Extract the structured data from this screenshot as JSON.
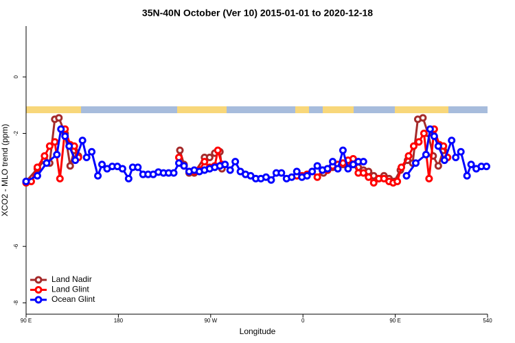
{
  "chart_data": {
    "type": "line",
    "title": "35N-40N October (Ver 10)   2015-01-01 to 2020-12-18",
    "x_label": "Longitude",
    "y_label": "XCO2 - MLO trend (ppm)",
    "xlim": [
      90,
      540
    ],
    "ylim": [
      -8.4,
      1.8
    ],
    "xticks": [
      {
        "value": 90,
        "label": "90 E"
      },
      180,
      {
        "value": 270,
        "label": "90 W"
      },
      {
        "value": 360,
        "label": "0"
      },
      {
        "value": 450,
        "label": "90 E"
      },
      540
    ],
    "yticks": [
      0,
      -2,
      -6,
      -8
    ],
    "legend": "bottom-left",
    "series": [
      {
        "name": "Land Nadir",
        "color": "#a52a2a",
        "x": [
          90,
          101,
          108,
          113,
          118,
          122,
          128,
          133,
          137,
          141,
          null,
          240,
          244,
          249,
          254,
          264,
          269,
          274,
          279,
          281,
          null,
          380,
          384,
          389,
          394,
          399,
          404,
          409,
          414,
          419,
          424,
          429,
          434,
          439,
          444,
          449,
          455,
          462,
          467,
          472,
          477,
          482,
          487,
          492,
          497
        ],
        "values": [
          -3.7,
          -3.25,
          -2.95,
          -3.05,
          -1.5,
          -1.45,
          -2.0,
          -3.15,
          -2.6,
          -2.8,
          null,
          -2.6,
          -3.1,
          -3.4,
          -3.4,
          -2.85,
          -2.85,
          -2.7,
          -2.65,
          -3.25,
          null,
          -3.4,
          -3.3,
          -3.2,
          -3.15,
          -3.1,
          -3.0,
          -3.1,
          -3.2,
          -3.3,
          -3.35,
          -3.5,
          -3.6,
          -3.5,
          -3.6,
          -3.7,
          -3.3,
          -2.95,
          -3.05,
          -1.5,
          -1.45,
          -2.0,
          -2.8,
          -3.15,
          -2.6
        ]
      },
      {
        "name": "Land Glint",
        "color": "#ff0000",
        "x": [
          90,
          95,
          101,
          108,
          113,
          118,
          123,
          128,
          133,
          137,
          141,
          null,
          239,
          244,
          249,
          254,
          259,
          264,
          269,
          274,
          277,
          281,
          null,
          354,
          359,
          364,
          369,
          374,
          379,
          384,
          389,
          394,
          399,
          404,
          409,
          414,
          419,
          424,
          429,
          434,
          439,
          444,
          448,
          452,
          456,
          463,
          468,
          473,
          478,
          483,
          488,
          493,
          497,
          501
        ],
        "values": [
          -3.75,
          -3.7,
          -3.2,
          -2.8,
          -2.45,
          -2.3,
          -3.6,
          -1.85,
          -2.4,
          -2.45,
          -2.85,
          null,
          -2.85,
          -3.15,
          -3.35,
          -3.35,
          -3.3,
          -3.0,
          -3.2,
          -3.15,
          -2.6,
          -3.1,
          null,
          -3.5,
          -3.5,
          -3.45,
          -3.35,
          -3.55,
          -3.3,
          -3.3,
          -3.15,
          -3.1,
          -3.05,
          -2.95,
          -2.9,
          -3.4,
          -3.4,
          -3.55,
          -3.75,
          -3.6,
          -3.6,
          -3.7,
          -3.75,
          -3.7,
          -3.2,
          -2.8,
          -2.45,
          -2.3,
          -2.0,
          -3.6,
          -1.85,
          -2.4,
          -2.45,
          -2.85
        ]
      },
      {
        "name": "Ocean Glint",
        "color": "#0000ff",
        "x": [
          90,
          101,
          110,
          120,
          124,
          128,
          132,
          138,
          145,
          149,
          154,
          160,
          164,
          169,
          174,
          179,
          184,
          190,
          194,
          199,
          204,
          209,
          214,
          219,
          224,
          229,
          234,
          239,
          244,
          249,
          254,
          259,
          264,
          269,
          274,
          279,
          284,
          289,
          294,
          299,
          304,
          309,
          314,
          319,
          324,
          329,
          334,
          339,
          344,
          349,
          354,
          359,
          364,
          369,
          374,
          379,
          384,
          389,
          394,
          399,
          404,
          409,
          414,
          419,
          null,
          461,
          470,
          480,
          484,
          488,
          492,
          498,
          505,
          509,
          514,
          520,
          524,
          529,
          534,
          539
        ],
        "values": [
          -3.7,
          -3.5,
          -3.05,
          -2.75,
          -1.85,
          -2.1,
          -2.45,
          -2.95,
          -2.25,
          -2.85,
          -2.65,
          -3.5,
          -3.1,
          -3.25,
          -3.17,
          -3.17,
          -3.25,
          -3.6,
          -3.2,
          -3.2,
          -3.45,
          -3.45,
          -3.45,
          -3.37,
          -3.4,
          -3.4,
          -3.4,
          -3.05,
          -3.15,
          -3.35,
          -3.3,
          -3.35,
          -3.3,
          -3.25,
          -3.2,
          -3.15,
          -3.1,
          -3.3,
          -3.0,
          -3.35,
          -3.45,
          -3.5,
          -3.6,
          -3.6,
          -3.55,
          -3.65,
          -3.4,
          -3.4,
          -3.6,
          -3.55,
          -3.35,
          -3.55,
          -3.5,
          -3.35,
          -3.15,
          -3.3,
          -3.25,
          -3.0,
          -3.25,
          -2.6,
          -3.25,
          -3.1,
          -3.0,
          -3.0,
          null,
          -3.5,
          -3.05,
          -2.75,
          -1.85,
          -2.1,
          -2.45,
          -2.95,
          -2.25,
          -2.85,
          -2.65,
          -3.5,
          -3.1,
          -3.25,
          -3.17,
          -3.17
        ]
      }
    ]
  }
}
